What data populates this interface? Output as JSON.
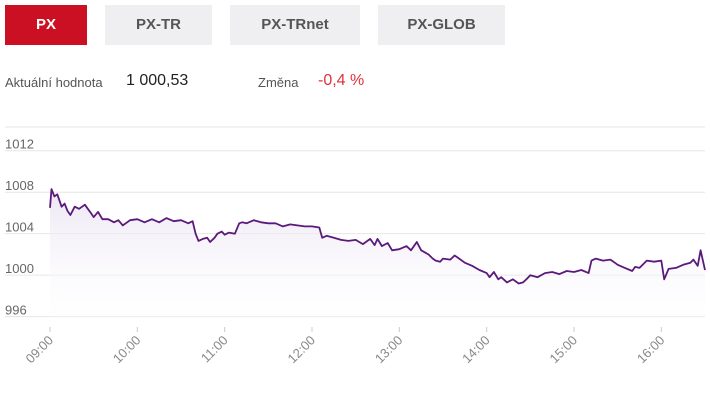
{
  "tabs": [
    {
      "label": "PX",
      "active": true
    },
    {
      "label": "PX-TR",
      "active": false
    },
    {
      "label": "PX-TRnet",
      "active": false
    },
    {
      "label": "PX-GLOB",
      "active": false
    }
  ],
  "stats": {
    "current_label": "Aktuální hodnota",
    "current_value": "1 000,53",
    "change_label": "Změna",
    "change_value": "-0,4 %"
  },
  "colors": {
    "accent": "#cc1024",
    "line": "#5b1a7a",
    "fill": "#e9e2f1",
    "negative": "#e0303a"
  },
  "chart_data": {
    "type": "area",
    "title": "",
    "xlabel": "",
    "ylabel": "",
    "xlim": [
      "09:00",
      "16:30"
    ],
    "ylim": [
      995,
      1014
    ],
    "y_ticks": [
      996,
      1000,
      1004,
      1008,
      1012
    ],
    "x_ticks": [
      "09:00",
      "10:00",
      "11:00",
      "12:00",
      "13:00",
      "14:00",
      "15:00",
      "16:00"
    ],
    "grid": true,
    "legend": "none",
    "series": [
      {
        "points": [
          [
            "09:00",
            1006.5
          ],
          [
            "09:01",
            1008.3
          ],
          [
            "09:03",
            1007.6
          ],
          [
            "09:05",
            1007.8
          ],
          [
            "09:08",
            1006.6
          ],
          [
            "09:10",
            1006.9
          ],
          [
            "09:12",
            1006.2
          ],
          [
            "09:14",
            1005.8
          ],
          [
            "09:17",
            1006.6
          ],
          [
            "09:20",
            1006.4
          ],
          [
            "09:24",
            1006.8
          ],
          [
            "09:26",
            1006.4
          ],
          [
            "09:28",
            1006.0
          ],
          [
            "09:30",
            1005.6
          ],
          [
            "09:33",
            1006.1
          ],
          [
            "09:36",
            1005.4
          ],
          [
            "09:40",
            1005.4
          ],
          [
            "09:44",
            1005.1
          ],
          [
            "09:47",
            1005.3
          ],
          [
            "09:50",
            1004.8
          ],
          [
            "09:55",
            1005.3
          ],
          [
            "10:00",
            1005.4
          ],
          [
            "10:05",
            1005.1
          ],
          [
            "10:10",
            1005.4
          ],
          [
            "10:15",
            1005.1
          ],
          [
            "10:20",
            1005.5
          ],
          [
            "10:25",
            1005.2
          ],
          [
            "10:30",
            1005.3
          ],
          [
            "10:35",
            1005.0
          ],
          [
            "10:38",
            1005.2
          ],
          [
            "10:40",
            1004.0
          ],
          [
            "10:42",
            1003.3
          ],
          [
            "10:45",
            1003.5
          ],
          [
            "10:48",
            1003.6
          ],
          [
            "10:50",
            1003.2
          ],
          [
            "10:53",
            1003.6
          ],
          [
            "10:55",
            1004.0
          ],
          [
            "10:58",
            1004.2
          ],
          [
            "11:00",
            1003.9
          ],
          [
            "11:03",
            1004.1
          ],
          [
            "11:07",
            1004.0
          ],
          [
            "11:10",
            1005.0
          ],
          [
            "11:12",
            1005.1
          ],
          [
            "11:15",
            1005.0
          ],
          [
            "11:20",
            1005.3
          ],
          [
            "11:25",
            1005.1
          ],
          [
            "11:30",
            1005.0
          ],
          [
            "11:35",
            1005.0
          ],
          [
            "11:40",
            1004.7
          ],
          [
            "11:45",
            1004.9
          ],
          [
            "11:50",
            1004.8
          ],
          [
            "11:55",
            1004.7
          ],
          [
            "12:00",
            1004.7
          ],
          [
            "12:05",
            1004.6
          ],
          [
            "12:07",
            1003.6
          ],
          [
            "12:10",
            1003.8
          ],
          [
            "12:15",
            1003.6
          ],
          [
            "12:20",
            1003.4
          ],
          [
            "12:25",
            1003.3
          ],
          [
            "12:30",
            1003.4
          ],
          [
            "12:35",
            1003.0
          ],
          [
            "12:40",
            1003.5
          ],
          [
            "12:43",
            1002.9
          ],
          [
            "12:45",
            1003.5
          ],
          [
            "12:48",
            1002.8
          ],
          [
            "12:52",
            1003.1
          ],
          [
            "12:55",
            1002.4
          ],
          [
            "13:00",
            1002.5
          ],
          [
            "13:05",
            1002.8
          ],
          [
            "13:08",
            1002.4
          ],
          [
            "13:12",
            1003.2
          ],
          [
            "13:15",
            1002.4
          ],
          [
            "13:20",
            1002.0
          ],
          [
            "13:23",
            1001.6
          ],
          [
            "13:25",
            1001.4
          ],
          [
            "13:28",
            1001.3
          ],
          [
            "13:30",
            1001.6
          ],
          [
            "13:35",
            1001.5
          ],
          [
            "13:38",
            1001.9
          ],
          [
            "13:40",
            1001.7
          ],
          [
            "13:45",
            1001.2
          ],
          [
            "13:50",
            1000.9
          ],
          [
            "13:55",
            1000.5
          ],
          [
            "14:00",
            1000.2
          ],
          [
            "14:02",
            999.8
          ],
          [
            "14:05",
            1000.3
          ],
          [
            "14:08",
            999.6
          ],
          [
            "14:10",
            999.8
          ],
          [
            "14:14",
            999.3
          ],
          [
            "14:18",
            999.6
          ],
          [
            "14:22",
            999.2
          ],
          [
            "14:25",
            999.3
          ],
          [
            "14:28",
            999.7
          ],
          [
            "14:30",
            1000.0
          ],
          [
            "14:35",
            999.8
          ],
          [
            "14:40",
            1000.2
          ],
          [
            "14:45",
            1000.3
          ],
          [
            "14:50",
            1000.1
          ],
          [
            "14:55",
            1000.4
          ],
          [
            "15:00",
            1000.3
          ],
          [
            "15:05",
            1000.5
          ],
          [
            "15:10",
            1000.2
          ],
          [
            "15:12",
            1001.4
          ],
          [
            "15:15",
            1001.6
          ],
          [
            "15:20",
            1001.4
          ],
          [
            "15:25",
            1001.5
          ],
          [
            "15:28",
            1001.2
          ],
          [
            "15:30",
            1001.0
          ],
          [
            "15:35",
            1000.7
          ],
          [
            "15:40",
            1000.4
          ],
          [
            "15:42",
            1000.8
          ],
          [
            "15:45",
            1000.7
          ],
          [
            "15:50",
            1001.4
          ],
          [
            "15:55",
            1001.3
          ],
          [
            "16:00",
            1001.4
          ],
          [
            "16:02",
            999.6
          ],
          [
            "16:05",
            1000.6
          ],
          [
            "16:10",
            1000.7
          ],
          [
            "16:15",
            1001.0
          ],
          [
            "16:20",
            1001.2
          ],
          [
            "16:22",
            1001.5
          ],
          [
            "16:25",
            1000.9
          ],
          [
            "16:27",
            1002.4
          ],
          [
            "16:30",
            1000.5
          ]
        ]
      }
    ]
  }
}
